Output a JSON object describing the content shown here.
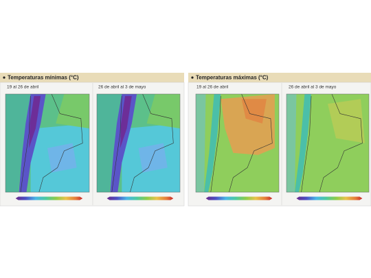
{
  "panels": [
    {
      "title": "Temperaturas mínimas (°C)",
      "maps": [
        {
          "period": "19 al 26 de abril"
        },
        {
          "period": "26 de abril al 3 de mayo"
        }
      ]
    },
    {
      "title": "Temperaturas máximas (°C)",
      "maps": [
        {
          "period": "19 al 26 de abril"
        },
        {
          "period": "26 de abril al 3 de mayo"
        }
      ]
    }
  ]
}
